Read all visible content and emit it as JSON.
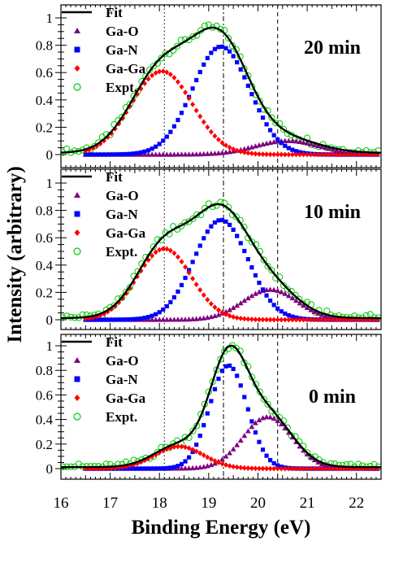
{
  "figure": {
    "ylabel": "Intensity (arbitrary)",
    "xlabel": "Binding Energy (eV)"
  },
  "colors": {
    "fit": "#000000",
    "ga_o": "#800080",
    "ga_n": "#0000ff",
    "ga_ga": "#ff0000",
    "expt": "#00cc00"
  },
  "chart_data": [
    {
      "type": "scatter",
      "panel": "20 min",
      "label": "20 min",
      "xlim": [
        16,
        22.5
      ],
      "ylim": [
        -0.05,
        1.07
      ],
      "xticks": [
        "16",
        "17",
        "18",
        "19",
        "20",
        "21",
        "22"
      ],
      "yticks": [
        "0",
        "0.2",
        "0.4",
        "0.6",
        "0.8",
        "1"
      ],
      "vlines": [
        18.1,
        19.3,
        20.4
      ],
      "legend": [
        "Fit",
        "Ga-O",
        "Ga-N",
        "Ga-Ga",
        "Expt."
      ],
      "components": [
        {
          "name": "Ga-O",
          "center": 20.6,
          "amplitude": 0.1,
          "sigma": 0.65
        },
        {
          "name": "Ga-N",
          "center": 19.25,
          "amplitude": 0.79,
          "sigma": 0.58
        },
        {
          "name": "Ga-Ga",
          "center": 18.05,
          "amplitude": 0.61,
          "sigma": 0.62
        }
      ],
      "series": [
        {
          "name": "Fit",
          "x": [
            16.0,
            16.5,
            17.0,
            17.5,
            18.0,
            18.5,
            19.0,
            19.5,
            20.0,
            20.5,
            21.0,
            21.5,
            22.0,
            22.5
          ],
          "y": [
            0.02,
            0.05,
            0.17,
            0.42,
            0.72,
            0.9,
            0.96,
            0.84,
            0.55,
            0.28,
            0.11,
            0.04,
            0.02,
            0.01
          ]
        }
      ]
    },
    {
      "type": "scatter",
      "panel": "10 min",
      "label": "10 min",
      "xlim": [
        16,
        22.5
      ],
      "ylim": [
        -0.05,
        1.07
      ],
      "xticks": [
        "16",
        "17",
        "18",
        "19",
        "20",
        "21",
        "22"
      ],
      "yticks": [
        "0",
        "0.2",
        "0.4",
        "0.6",
        "0.8",
        "1"
      ],
      "vlines": [
        18.1,
        19.3,
        20.4
      ],
      "legend": [
        "Fit",
        "Ga-O",
        "Ga-N",
        "Ga-Ga",
        "Expt."
      ],
      "components": [
        {
          "name": "Ga-O",
          "center": 20.25,
          "amplitude": 0.22,
          "sigma": 0.55
        },
        {
          "name": "Ga-N",
          "center": 19.25,
          "amplitude": 0.73,
          "sigma": 0.55
        },
        {
          "name": "Ga-Ga",
          "center": 18.1,
          "amplitude": 0.52,
          "sigma": 0.55
        }
      ],
      "series": [
        {
          "name": "Fit",
          "x": [
            16.0,
            16.5,
            17.0,
            17.5,
            18.0,
            18.5,
            19.0,
            19.5,
            20.0,
            20.5,
            21.0,
            21.5,
            22.0,
            22.5
          ],
          "y": [
            0.02,
            0.04,
            0.12,
            0.33,
            0.6,
            0.82,
            0.92,
            0.78,
            0.55,
            0.37,
            0.19,
            0.06,
            0.02,
            0.01
          ]
        }
      ]
    },
    {
      "type": "scatter",
      "panel": "0 min",
      "label": "0 min",
      "xlim": [
        16,
        22.5
      ],
      "ylim": [
        -0.05,
        1.07
      ],
      "xticks": [
        "16",
        "17",
        "18",
        "19",
        "20",
        "21",
        "22"
      ],
      "yticks": [
        "0",
        "0.2",
        "0.4",
        "0.6",
        "0.8",
        "1"
      ],
      "vlines": [
        18.1,
        19.3,
        20.4
      ],
      "legend": [
        "Fit",
        "Ga-O",
        "Ga-N",
        "Ga-Ga",
        "Expt."
      ],
      "components": [
        {
          "name": "Ga-O",
          "center": 20.2,
          "amplitude": 0.42,
          "sigma": 0.5
        },
        {
          "name": "Ga-N",
          "center": 19.4,
          "amplitude": 0.84,
          "sigma": 0.38
        },
        {
          "name": "Ga-Ga",
          "center": 18.4,
          "amplitude": 0.18,
          "sigma": 0.5
        }
      ],
      "series": [
        {
          "name": "Fit",
          "x": [
            16.0,
            16.5,
            17.0,
            17.5,
            18.0,
            18.5,
            19.0,
            19.5,
            20.0,
            20.5,
            21.0,
            21.5,
            22.0,
            22.5
          ],
          "y": [
            0.01,
            0.02,
            0.04,
            0.07,
            0.15,
            0.31,
            0.64,
            0.95,
            0.68,
            0.39,
            0.1,
            0.03,
            0.01,
            0.0
          ]
        }
      ]
    }
  ]
}
